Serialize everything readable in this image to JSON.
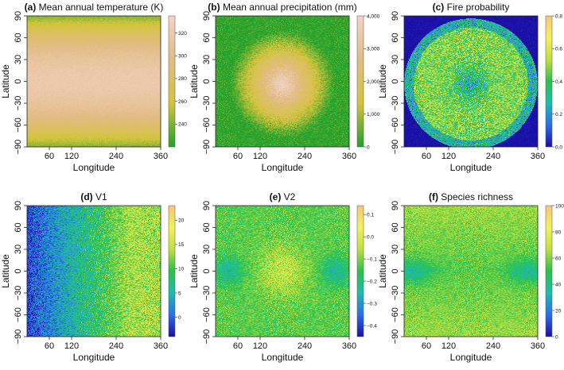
{
  "figure": {
    "panel_count": 6
  },
  "chart_data": [
    {
      "type": "heatmap",
      "id": "a",
      "letter": "(a)",
      "name": "Mean annual temperature (K)",
      "pattern": "temperature",
      "xlabel": "Longitude",
      "ylabel": "Latitude",
      "xlim": [
        0,
        360
      ],
      "ylim": [
        -90,
        90
      ],
      "xticks": [
        60,
        120,
        240,
        360
      ],
      "yticks": [
        -90,
        -60,
        -30,
        0,
        30,
        60,
        90
      ],
      "colorscale": [
        "#1fa12c",
        "#d4c43a",
        "#e1bc84",
        "#f3d3c8"
      ],
      "colorbar_range": [
        220,
        335
      ],
      "colorbar_ticks": [
        240,
        260,
        280,
        300,
        320
      ],
      "colorbar_labels": [
        "240",
        "260",
        "280",
        "300",
        "320"
      ]
    },
    {
      "type": "heatmap",
      "id": "b",
      "letter": "(b)",
      "name": "Mean annual precipitation (mm)",
      "pattern": "precip",
      "xlabel": "Longitude",
      "ylabel": "Latitude",
      "xlim": [
        0,
        360
      ],
      "ylim": [
        -90,
        90
      ],
      "xticks": [
        60,
        120,
        240,
        360
      ],
      "yticks": [
        -90,
        -60,
        -30,
        0,
        30,
        60,
        90
      ],
      "colorscale": [
        "#1fa12c",
        "#d4c43a",
        "#e1bc84",
        "#f3d3c8"
      ],
      "colorbar_range": [
        0,
        4000
      ],
      "colorbar_ticks": [
        0,
        1000,
        2000,
        3000,
        4000
      ],
      "colorbar_labels": [
        "0",
        "1,000",
        "2,000",
        "3,000",
        "4,000"
      ]
    },
    {
      "type": "heatmap",
      "id": "c",
      "letter": "(c)",
      "name": "Fire probability",
      "pattern": "fire",
      "xlabel": "Longitude",
      "ylabel": "Latitude",
      "xlim": [
        0,
        360
      ],
      "ylim": [
        -90,
        90
      ],
      "xticks": [
        60,
        120,
        240,
        360
      ],
      "yticks": [
        -90,
        -60,
        -30,
        0,
        30,
        60,
        90
      ],
      "colorscale": [
        "#1b0ea5",
        "#2a6df0",
        "#1fbcb0",
        "#28c24a",
        "#c0e040",
        "#f4f25a",
        "#f4c879"
      ],
      "colorbar_range": [
        0,
        0.8
      ],
      "colorbar_ticks": [
        0,
        0.2,
        0.4,
        0.6,
        0.8
      ],
      "colorbar_labels": [
        "0.0",
        "0.2",
        "0.4",
        "0.6",
        "0.8"
      ]
    },
    {
      "type": "heatmap",
      "id": "d",
      "letter": "(d)",
      "name": "V1",
      "pattern": "v1",
      "xlabel": "Longitude",
      "ylabel": "Latitude",
      "xlim": [
        0,
        360
      ],
      "ylim": [
        -90,
        90
      ],
      "xticks": [
        60,
        120,
        240,
        360
      ],
      "yticks": [
        -90,
        -60,
        -30,
        0,
        30,
        60,
        90
      ],
      "colorscale": [
        "#1b0ea5",
        "#2a6df0",
        "#1fbcb0",
        "#28c24a",
        "#c0e040",
        "#f4f25a",
        "#f4c879"
      ],
      "colorbar_range": [
        -4,
        23
      ],
      "colorbar_ticks": [
        0,
        5,
        10,
        15,
        20
      ],
      "colorbar_labels": [
        "0",
        "5",
        "10",
        "15",
        "20"
      ]
    },
    {
      "type": "heatmap",
      "id": "e",
      "letter": "(e)",
      "name": "V2",
      "pattern": "v2",
      "xlabel": "Longitude",
      "ylabel": "Latitude",
      "xlim": [
        0,
        360
      ],
      "ylim": [
        -90,
        90
      ],
      "xticks": [
        60,
        120,
        240,
        360
      ],
      "yticks": [
        -90,
        -60,
        -30,
        0,
        30,
        60,
        90
      ],
      "colorscale": [
        "#1b0ea5",
        "#2a6df0",
        "#1fbcb0",
        "#28c24a",
        "#c0e040",
        "#f4f25a",
        "#f4c879"
      ],
      "colorbar_range": [
        -0.45,
        0.14
      ],
      "colorbar_ticks": [
        -0.4,
        -0.3,
        -0.2,
        -0.1,
        0,
        0.1
      ],
      "colorbar_labels": [
        "−0.4",
        "−0.3",
        "−0.2",
        "−0.1",
        "0.0",
        "0.1"
      ]
    },
    {
      "type": "heatmap",
      "id": "f",
      "letter": "(f)",
      "name": "Species richness",
      "pattern": "richness",
      "xlabel": "Longitude",
      "ylabel": "Latitude",
      "xlim": [
        0,
        360
      ],
      "ylim": [
        -90,
        90
      ],
      "xticks": [
        60,
        120,
        240,
        360
      ],
      "yticks": [
        -90,
        -60,
        -30,
        0,
        30,
        60,
        90
      ],
      "colorscale": [
        "#1b0ea5",
        "#2a6df0",
        "#1fbcb0",
        "#28c24a",
        "#c0e040",
        "#f4f25a",
        "#f4c879"
      ],
      "colorbar_range": [
        0,
        100
      ],
      "colorbar_ticks": [
        0,
        20,
        40,
        60,
        80,
        100
      ],
      "colorbar_labels": [
        "0",
        "20",
        "40",
        "60",
        "80",
        "100"
      ]
    }
  ]
}
